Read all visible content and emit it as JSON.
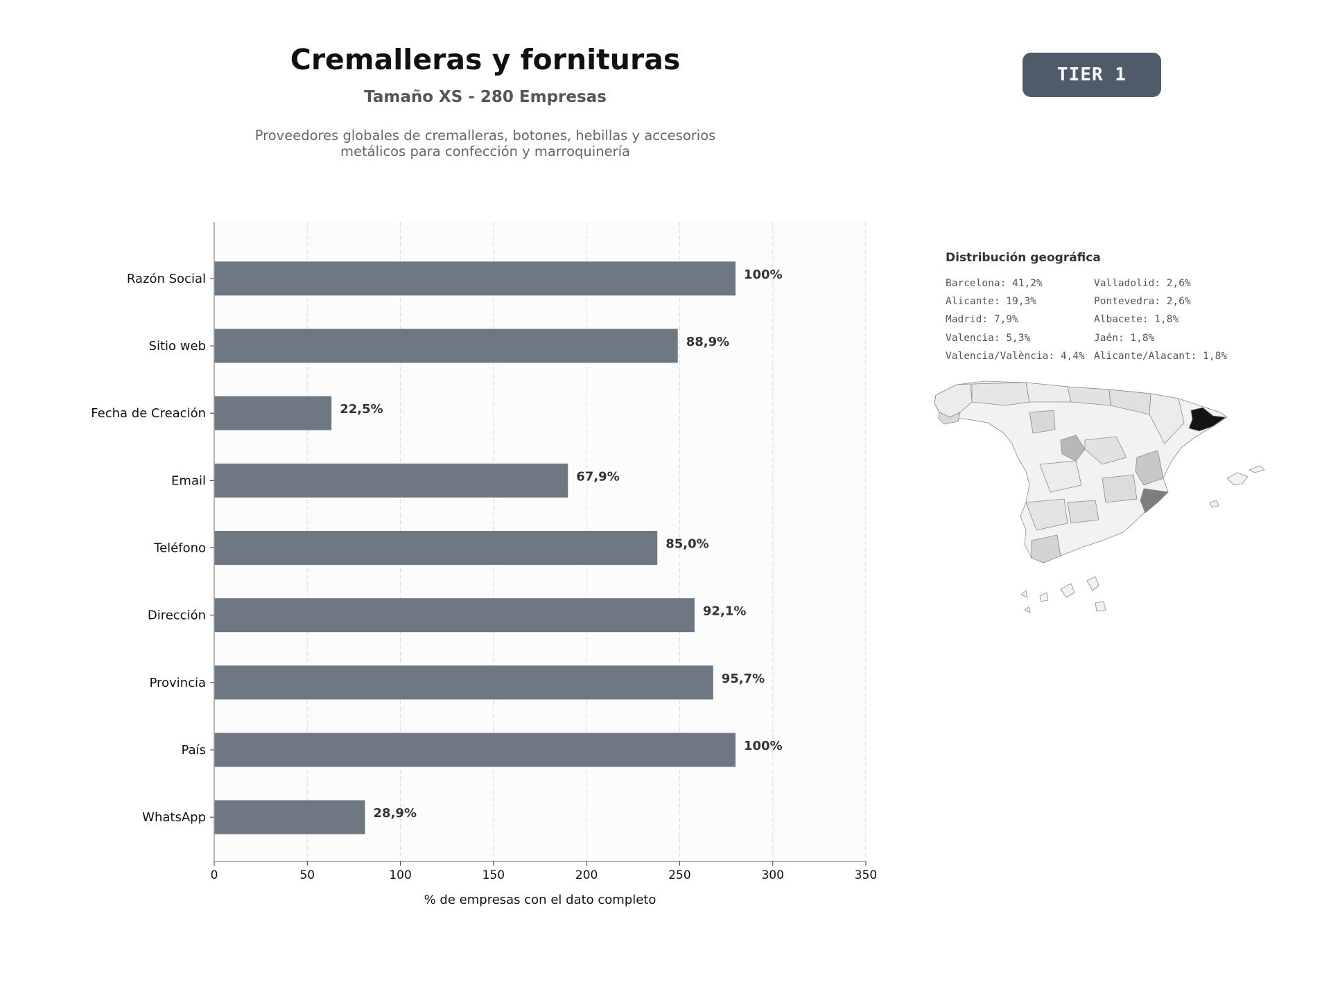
{
  "header": {
    "title": "Cremalleras y fornituras",
    "subtitle": "Tamaño XS - 280 Empresas",
    "description_line1": "Proveedores globales de cremalleras, botones, hebillas y accesorios",
    "description_line2": "metálicos para confección y marroquinería",
    "tier_label": "TIER 1"
  },
  "chart_data": {
    "type": "bar",
    "orientation": "horizontal",
    "categories": [
      "Razón Social",
      "Sitio web",
      "Fecha de Creación",
      "Email",
      "Teléfono",
      "Dirección",
      "Provincia",
      "País",
      "WhatsApp"
    ],
    "values": [
      280,
      249,
      63,
      190,
      238,
      258,
      268,
      280,
      81
    ],
    "data_labels": [
      "100%",
      "88,9%",
      "22,5%",
      "67,9%",
      "85,0%",
      "92,1%",
      "95,7%",
      "100%",
      "28,9%"
    ],
    "xlabel": "% de empresas con el dato completo",
    "ylabel": "",
    "xlim": [
      0,
      350
    ],
    "xticks": [
      0,
      50,
      100,
      150,
      200,
      250,
      300,
      350
    ],
    "grid": "vertical dashed",
    "bar_color": "#6e7882",
    "background": "#fcfcfc"
  },
  "geo": {
    "title": "Distribución geográfica",
    "col1": [
      "Barcelona: 41,2%",
      "Alicante: 19,3%",
      "Madrid: 7,9%",
      "Valencia: 5,3%",
      "Valencia/València: 4,4%"
    ],
    "col2": [
      "Valladolid: 2,6%",
      "Pontevedra: 2,6%",
      "Albacete: 1,8%",
      "Jaén: 1,8%",
      "Alicante/Alacant: 1,8%"
    ]
  }
}
